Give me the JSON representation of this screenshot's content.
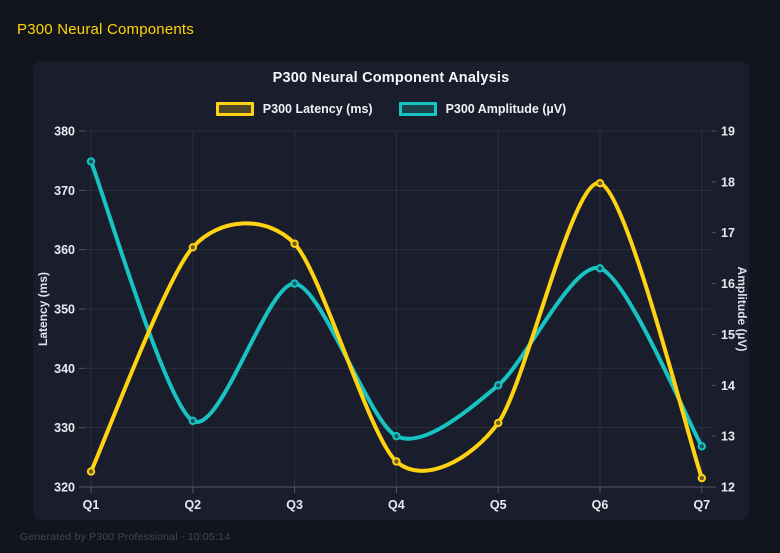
{
  "header": {
    "title": "P300 Neural Components",
    "color": "#ffd700"
  },
  "footer": {
    "text": "Generated by P300 Professional - 10:05:14"
  },
  "colors": {
    "background": "#12141e",
    "panel": "#1a1d2b",
    "grid": "rgba(255,255,255,0.08)",
    "axis_line": "rgba(255,255,255,0.25)",
    "tick_text": "#e8eaf1",
    "latency": "#ffd312",
    "amplitude": "#17c3c3"
  },
  "chart_data": {
    "type": "line",
    "title": "P300 Neural Component Analysis",
    "categories": [
      "Q1",
      "Q2",
      "Q3",
      "Q4",
      "Q5",
      "Q6",
      "Q7"
    ],
    "series": [
      {
        "name": "P300 Latency (ms)",
        "axis": "left_axis",
        "color": "#ffd312",
        "values": [
          322.6,
          360.4,
          361.0,
          324.3,
          330.8,
          371.2,
          321.5
        ]
      },
      {
        "name": "P300 Amplitude (µV)",
        "axis": "right_axis",
        "color": "#17c3c3",
        "values": [
          18.4,
          13.3,
          16.0,
          13.0,
          14.0,
          16.3,
          12.8
        ]
      }
    ],
    "left_axis": {
      "label": "Latency (ms)",
      "min": 320,
      "max": 380,
      "step": 10
    },
    "right_axis": {
      "label": "Amplitude (µV)",
      "min": 12,
      "max": 19,
      "step": 1
    },
    "grid": true,
    "legend_position": "top",
    "smoothing": "catmull-rom"
  }
}
